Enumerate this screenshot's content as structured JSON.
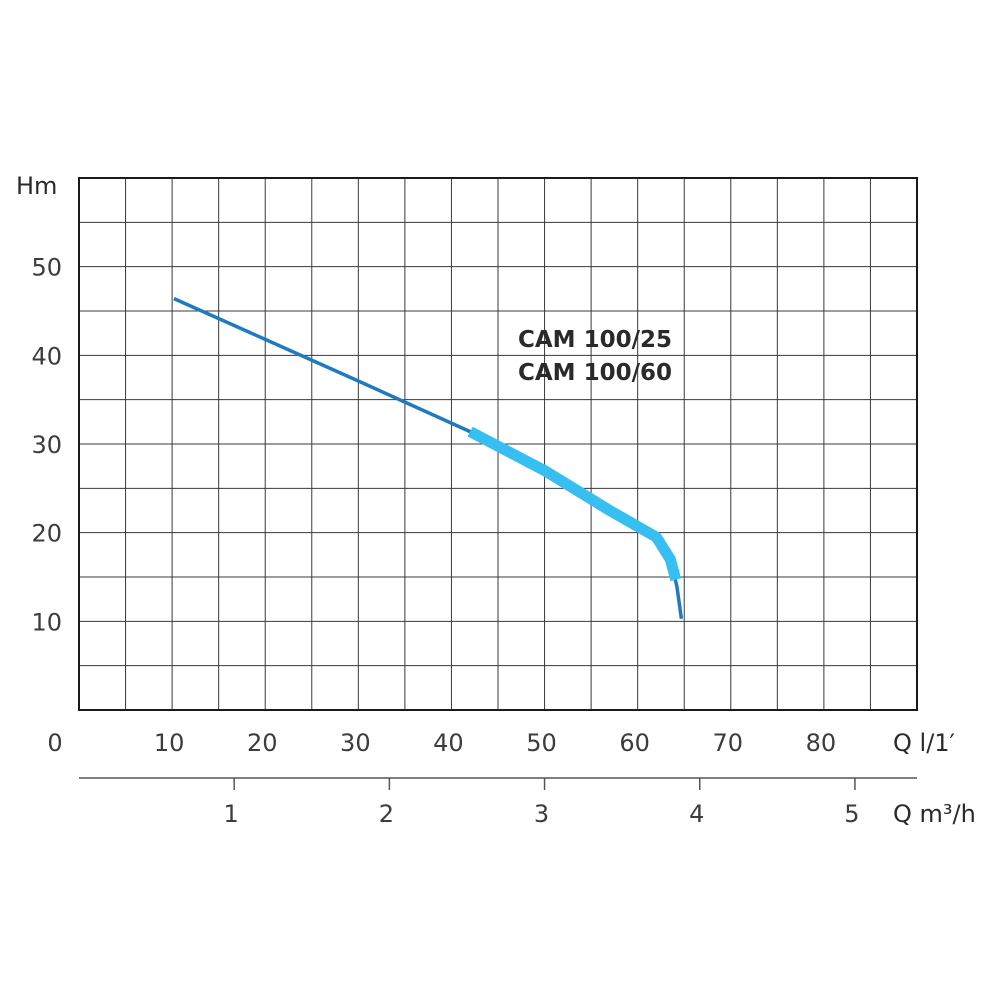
{
  "chart_data": {
    "type": "line",
    "y_title": "Hm",
    "x_title": "Q l/1′",
    "x2_title": "Q m³/h",
    "x_ticks": [
      "0",
      "10",
      "20",
      "30",
      "40",
      "50",
      "60",
      "70",
      "80"
    ],
    "y_ticks": [
      "10",
      "20",
      "30",
      "40",
      "50"
    ],
    "x2_ticks": [
      "1",
      "2",
      "3",
      "4",
      "5"
    ],
    "x_range": [
      0,
      90
    ],
    "y_range": [
      0,
      60
    ],
    "x2_range": [
      0,
      5.4
    ],
    "grid": true,
    "series_label_lines": [
      "CAM 100/25",
      "CAM 100/60"
    ],
    "series": [
      {
        "color": "#1f7bbd",
        "points": [
          [
            10.2,
            46.4
          ],
          [
            20,
            41.8
          ],
          [
            30,
            37.1
          ],
          [
            42,
            31.4
          ],
          [
            50,
            27
          ],
          [
            57,
            22.5
          ],
          [
            62,
            19.5
          ],
          [
            63.5,
            17
          ],
          [
            64.2,
            14
          ],
          [
            64.7,
            10.3
          ]
        ]
      },
      {
        "color": "#36bff0",
        "points": [
          [
            42,
            31.4
          ],
          [
            50,
            27
          ],
          [
            57,
            22.5
          ],
          [
            62,
            19.5
          ],
          [
            63.5,
            17
          ],
          [
            64.1,
            14.7
          ]
        ]
      }
    ]
  }
}
